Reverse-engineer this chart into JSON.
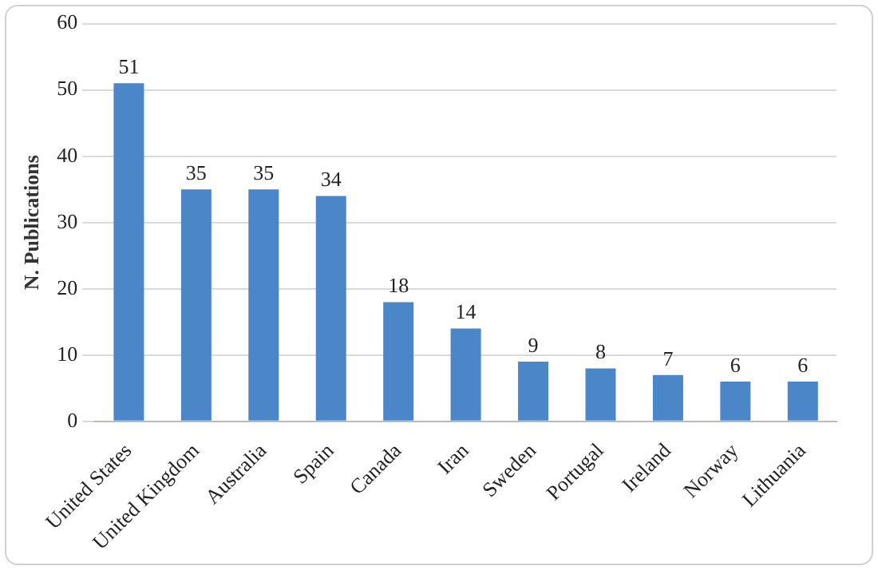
{
  "chart_data": {
    "type": "bar",
    "ylabel": "N. Publications",
    "categories": [
      "United States",
      "United Kingdom",
      "Australia",
      "Spain",
      "Canada",
      "Iran",
      "Sweden",
      "Portugal",
      "Ireland",
      "Norway",
      "Lithuania"
    ],
    "values": [
      51,
      35,
      35,
      34,
      18,
      14,
      9,
      8,
      7,
      6,
      6
    ],
    "color": "#4a86c8",
    "ylim": [
      0,
      60
    ],
    "yticks": [
      0,
      10,
      20,
      30,
      40,
      50,
      60
    ],
    "grid": "y",
    "data_labels": true,
    "legend": false
  }
}
